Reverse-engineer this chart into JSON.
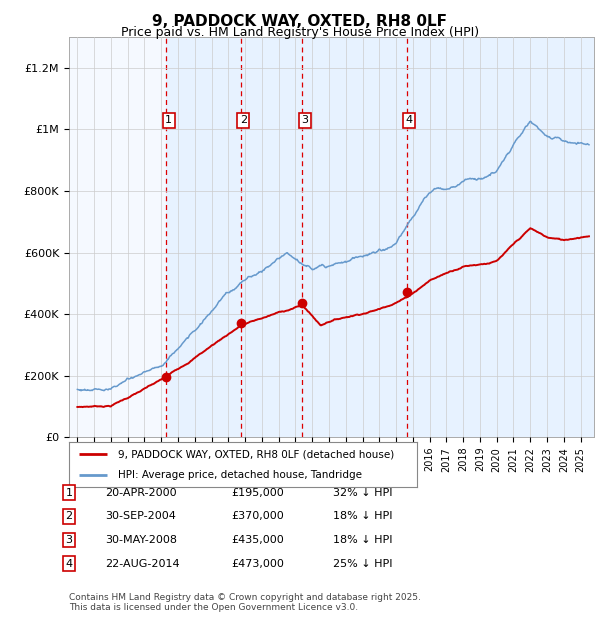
{
  "title": "9, PADDOCK WAY, OXTED, RH8 0LF",
  "subtitle": "Price paid vs. HM Land Registry's House Price Index (HPI)",
  "footnote": "Contains HM Land Registry data © Crown copyright and database right 2025.\nThis data is licensed under the Open Government Licence v3.0.",
  "legend_line1": "9, PADDOCK WAY, OXTED, RH8 0LF (detached house)",
  "legend_line2": "HPI: Average price, detached house, Tandridge",
  "transactions": [
    {
      "num": 1,
      "date": "20-APR-2000",
      "price": 195000,
      "pct": "32%",
      "year_x": 2000.3
    },
    {
      "num": 2,
      "date": "30-SEP-2004",
      "price": 370000,
      "pct": "18%",
      "year_x": 2004.75
    },
    {
      "num": 3,
      "date": "30-MAY-2008",
      "price": 435000,
      "pct": "18%",
      "year_x": 2008.42
    },
    {
      "num": 4,
      "date": "22-AUG-2014",
      "price": 473000,
      "pct": "25%",
      "year_x": 2014.64
    }
  ],
  "ylabel_ticks": [
    "£0",
    "£200K",
    "£400K",
    "£600K",
    "£800K",
    "£1M",
    "£1.2M"
  ],
  "ytick_vals": [
    0,
    200000,
    400000,
    600000,
    800000,
    1000000,
    1200000
  ],
  "ylim": [
    0,
    1300000
  ],
  "xlim_start": 1994.5,
  "xlim_end": 2025.8,
  "red_color": "#cc0000",
  "blue_color": "#6699cc",
  "grid_color": "#cccccc",
  "dashed_line_color": "#dd0000",
  "shade_color": "#ddeeff",
  "plot_bg_color": "#f5f9ff",
  "background_color": "#ffffff"
}
